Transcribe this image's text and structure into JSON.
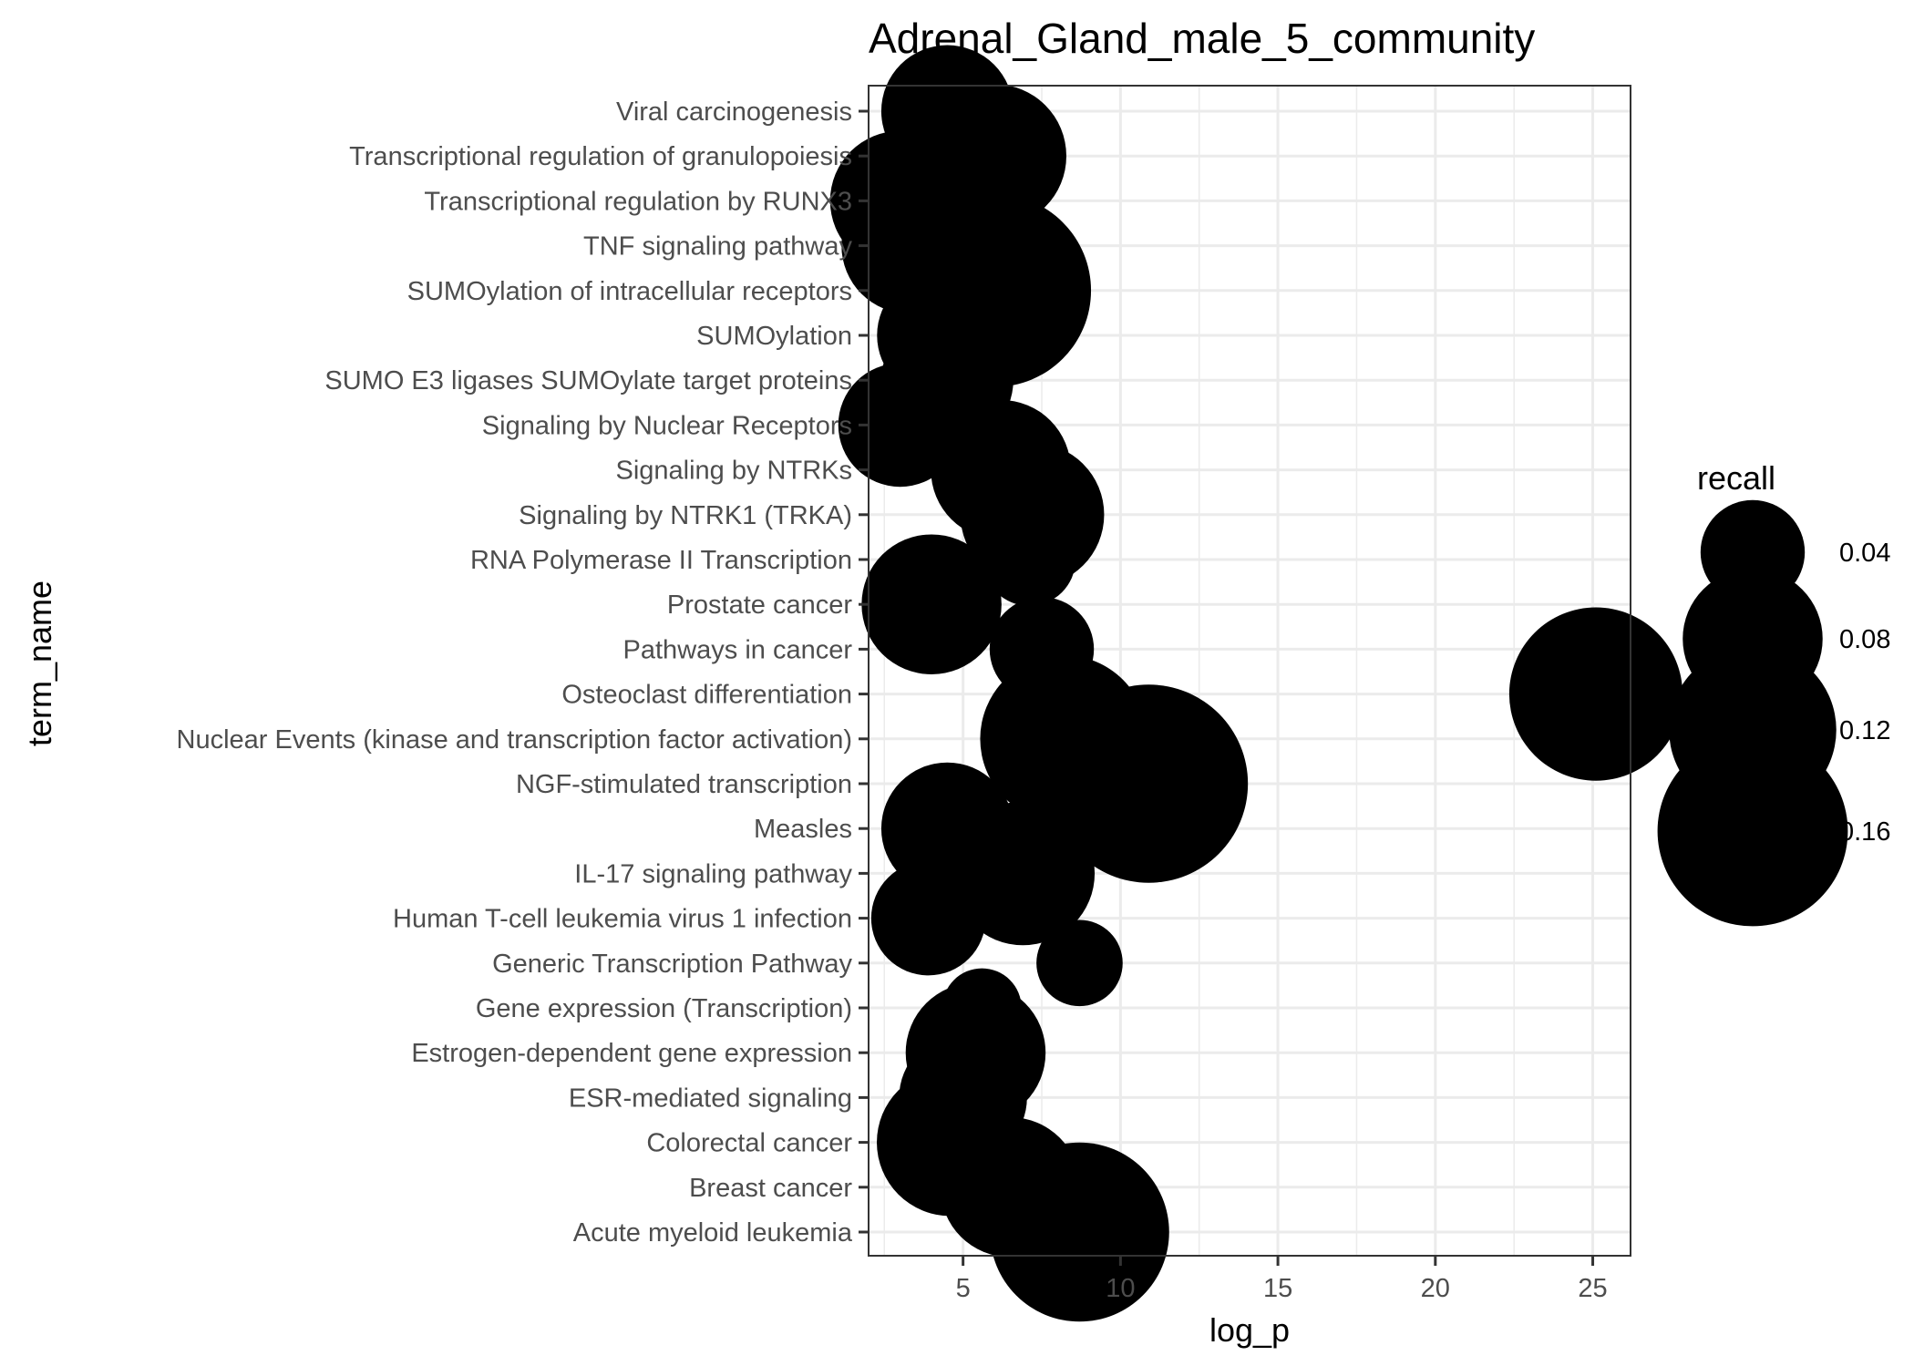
{
  "chart_data": {
    "type": "scatter",
    "title": "Adrenal_Gland_male_5_community",
    "xlabel": "log_p",
    "ylabel": "term_name",
    "xlim": [
      2.0,
      26.2
    ],
    "x_ticks": [
      5,
      10,
      15,
      20,
      25
    ],
    "grid": true,
    "legend": {
      "title": "recall",
      "position": "right",
      "values": [
        0.04,
        0.08,
        0.12,
        0.16
      ],
      "labels": [
        "0.04",
        "0.08",
        "0.12",
        "0.16"
      ]
    },
    "points": [
      {
        "term": "Viral carcinogenesis",
        "log_p": 4.5,
        "recall": 0.07
      },
      {
        "term": "Transcriptional regulation of granulopoiesis",
        "log_p": 6.0,
        "recall": 0.085
      },
      {
        "term": "Transcriptional regulation by RUNX3",
        "log_p": 3.0,
        "recall": 0.08
      },
      {
        "term": "TNF signaling pathway",
        "log_p": 3.3,
        "recall": 0.075
      },
      {
        "term": "SUMOylation of intracellular receptors",
        "log_p": 6.0,
        "recall": 0.165
      },
      {
        "term": "SUMOylation",
        "log_p": 4.3,
        "recall": 0.065
      },
      {
        "term": "SUMO E3 ligases SUMOylate target proteins",
        "log_p": 4.5,
        "recall": 0.07
      },
      {
        "term": "Signaling by Nuclear Receptors",
        "log_p": 3.0,
        "recall": 0.06
      },
      {
        "term": "Signaling by NTRKs",
        "log_p": 6.2,
        "recall": 0.08
      },
      {
        "term": "Signaling by NTRK1 (TRKA)",
        "log_p": 7.2,
        "recall": 0.085
      },
      {
        "term": "RNA Polymerase II Transcription",
        "log_p": 7.1,
        "recall": 0.03
      },
      {
        "term": "Prostate cancer",
        "log_p": 4.0,
        "recall": 0.08
      },
      {
        "term": "Pathways in cancer",
        "log_p": 7.5,
        "recall": 0.04
      },
      {
        "term": "Osteoclast differentiation",
        "log_p": 25.1,
        "recall": 0.13
      },
      {
        "term": "Nuclear Events (kinase and transcription factor activation)",
        "log_p": 8.2,
        "recall": 0.12
      },
      {
        "term": "NGF-stimulated transcription",
        "log_p": 10.9,
        "recall": 0.175
      },
      {
        "term": "Measles",
        "log_p": 4.5,
        "recall": 0.07
      },
      {
        "term": "IL-17 signaling pathway",
        "log_p": 6.9,
        "recall": 0.085
      },
      {
        "term": "Human T-cell leukemia virus 1 infection",
        "log_p": 3.9,
        "recall": 0.05
      },
      {
        "term": "Generic Transcription Pathway",
        "log_p": 8.7,
        "recall": 0.025
      },
      {
        "term": "Gene expression (Transcription)",
        "log_p": 5.6,
        "recall": 0.02
      },
      {
        "term": "Estrogen-dependent gene expression",
        "log_p": 5.4,
        "recall": 0.08
      },
      {
        "term": "ESR-mediated signaling",
        "log_p": 5.0,
        "recall": 0.065
      },
      {
        "term": "Colorectal cancer",
        "log_p": 4.6,
        "recall": 0.09
      },
      {
        "term": "Breast cancer",
        "log_p": 6.5,
        "recall": 0.08
      },
      {
        "term": "Acute myeloid leukemia",
        "log_p": 8.7,
        "recall": 0.14
      }
    ]
  }
}
